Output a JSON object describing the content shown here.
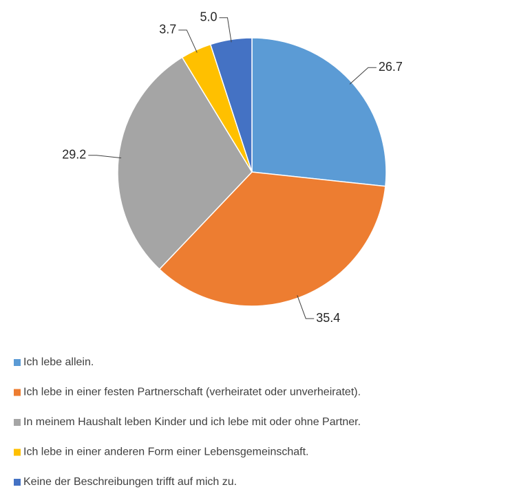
{
  "chart_data": {
    "type": "pie",
    "categories": [
      "Ich lebe allein.",
      "Ich lebe in einer festen Partnerschaft (verheiratet oder unverheiratet).",
      "In meinem Haushalt leben Kinder und ich lebe mit oder ohne Partner.",
      "Ich lebe in einer anderen Form einer Lebensgemeinschaft.",
      "Keine der Beschreibungen trifft auf mich zu."
    ],
    "values": [
      26.7,
      35.4,
      29.2,
      3.7,
      5.0
    ],
    "value_labels": [
      "26.7",
      "35.4",
      "29.2",
      "3.7",
      "5.0"
    ],
    "colors": [
      "#5b9bd5",
      "#ed7d31",
      "#a5a5a5",
      "#ffc000",
      "#4472c4"
    ],
    "legend": "bottom"
  }
}
